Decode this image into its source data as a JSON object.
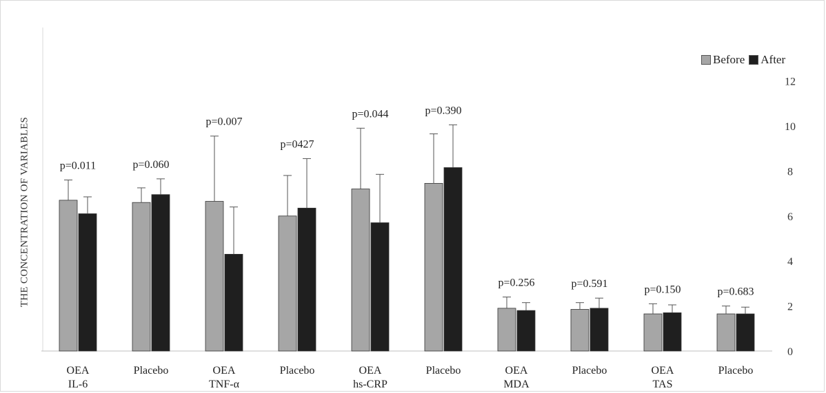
{
  "chart_data": {
    "type": "bar",
    "title": "",
    "ylabel": "THE CONCENTRATION OF VARIABLES",
    "xlabel": "",
    "ylim": [
      0,
      12
    ],
    "yticks": [
      0,
      2,
      4,
      6,
      8,
      10,
      12
    ],
    "y_axis_side": "right",
    "grid": false,
    "legend_position": "top-right",
    "categories": [
      [
        "OEA",
        "IL-6"
      ],
      [
        "Placebo"
      ],
      [
        "OEA",
        "TNF-α"
      ],
      [
        "Placebo"
      ],
      [
        "OEA",
        "hs-CRP"
      ],
      [
        "Placebo"
      ],
      [
        "OEA",
        "MDA"
      ],
      [
        "Placebo"
      ],
      [
        "OEA",
        "TAS"
      ],
      [
        "Placebo"
      ]
    ],
    "series": [
      {
        "name": "Before",
        "color": "#a6a6a6",
        "values": [
          6.7,
          6.6,
          6.65,
          6.0,
          7.2,
          7.45,
          1.9,
          1.85,
          1.65,
          1.65
        ],
        "errors": [
          0.9,
          0.65,
          2.9,
          1.8,
          2.7,
          2.2,
          0.5,
          0.3,
          0.45,
          0.35
        ]
      },
      {
        "name": "After",
        "color": "#1f1f1f",
        "values": [
          6.1,
          6.95,
          4.3,
          6.35,
          5.7,
          8.15,
          1.8,
          1.9,
          1.7,
          1.65
        ],
        "errors": [
          0.75,
          0.7,
          2.1,
          2.2,
          2.15,
          1.9,
          0.35,
          0.45,
          0.35,
          0.3
        ]
      }
    ],
    "annotations": [
      "p=0.011",
      "p=0.060",
      "p=0.007",
      "p=0427",
      "p=0.044",
      "p=0.390",
      "p=0.256",
      "p=0.591",
      "p=0.150",
      "p=0.683"
    ]
  }
}
